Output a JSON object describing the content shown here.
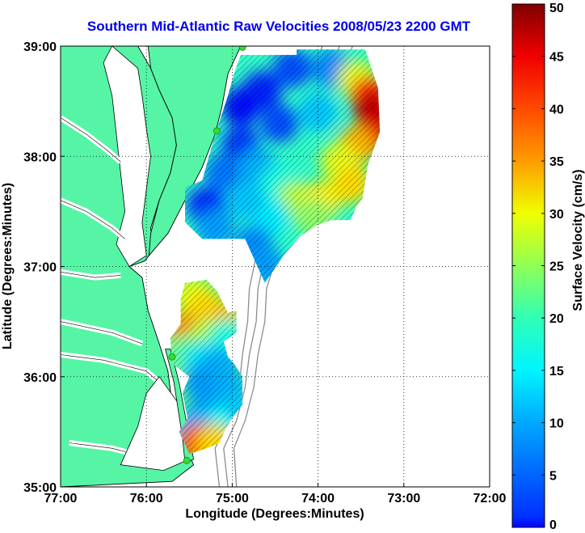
{
  "title": "Southern Mid-Atlantic Raw Velocities 2008/05/23 2200 GMT",
  "map": {
    "xlabel": "Longitude (Degrees:Minutes)",
    "ylabel": "Latitude (Degrees:Minutes)",
    "lon_range": [
      -77,
      -72
    ],
    "lat_range": [
      35,
      39
    ],
    "x_ticks": [
      {
        "value": -77,
        "label": "77:00"
      },
      {
        "value": -76,
        "label": "76:00"
      },
      {
        "value": -75,
        "label": "75:00"
      },
      {
        "value": -74,
        "label": "74:00"
      },
      {
        "value": -73,
        "label": "73:00"
      },
      {
        "value": -72,
        "label": "72:00"
      }
    ],
    "y_ticks": [
      {
        "value": 39,
        "label": "39:00"
      },
      {
        "value": 38,
        "label": "38:00"
      },
      {
        "value": 37,
        "label": "37:00"
      },
      {
        "value": 36,
        "label": "36:00"
      },
      {
        "value": 35,
        "label": "35:00"
      }
    ],
    "grid": "dotted",
    "colors": {
      "land": "#55f5a5",
      "water": "#ffffff",
      "coast": "#000000",
      "bathymetry": "#8c8c8c",
      "station": "#33dd33",
      "vectors": "#000000"
    }
  },
  "colorbar": {
    "label": "Surface Velocity (cm/s)",
    "range": [
      0,
      50
    ],
    "ticks": [
      0,
      5,
      10,
      15,
      20,
      25,
      30,
      35,
      40,
      45,
      50
    ],
    "colormap": "jet",
    "units": "cm/s"
  },
  "stations": [
    {
      "lon": -74.88,
      "lat": 38.99
    },
    {
      "lon": -75.18,
      "lat": 38.23
    },
    {
      "lon": -75.7,
      "lat": 36.18
    },
    {
      "lon": -75.53,
      "lat": 35.24
    }
  ],
  "chart_data": {
    "type": "heatmap",
    "title": "Southern Mid-Atlantic Raw Velocities 2008/05/23 2200 GMT",
    "xlabel": "Longitude (Degrees:Minutes)",
    "ylabel": "Latitude (Degrees:Minutes)",
    "xlim": [
      -77,
      -72
    ],
    "ylim": [
      35,
      39
    ],
    "zlabel": "Surface Velocity (cm/s)",
    "zlim": [
      0,
      50
    ],
    "regions": [
      {
        "polygon": [
          [
            -74.9,
            38.92
          ],
          [
            -74.25,
            38.92
          ],
          [
            -74.25,
            38.97
          ],
          [
            -73.45,
            38.97
          ],
          [
            -73.3,
            38.62
          ],
          [
            -73.28,
            38.22
          ],
          [
            -73.42,
            37.92
          ],
          [
            -73.48,
            37.62
          ],
          [
            -73.55,
            37.55
          ],
          [
            -73.62,
            37.42
          ],
          [
            -73.85,
            37.42
          ],
          [
            -74.0,
            37.38
          ],
          [
            -74.2,
            37.28
          ],
          [
            -74.4,
            37.1
          ],
          [
            -74.62,
            36.85
          ],
          [
            -74.85,
            37.25
          ],
          [
            -75.0,
            37.25
          ],
          [
            -75.35,
            37.25
          ],
          [
            -75.55,
            37.4
          ],
          [
            -75.55,
            37.72
          ],
          [
            -75.35,
            37.78
          ],
          [
            -75.2,
            38.2
          ],
          [
            -75.05,
            38.55
          ],
          [
            -74.98,
            38.75
          ]
        ],
        "cells": [
          {
            "lon": -74.65,
            "lat": 38.6,
            "v": 8
          },
          {
            "lon": -74.9,
            "lat": 38.45,
            "v": 7
          },
          {
            "lon": -74.3,
            "lat": 38.8,
            "v": 10
          },
          {
            "lon": -73.85,
            "lat": 38.8,
            "v": 13
          },
          {
            "lon": -73.55,
            "lat": 38.7,
            "v": 30
          },
          {
            "lon": -73.4,
            "lat": 38.55,
            "v": 42
          },
          {
            "lon": -73.35,
            "lat": 38.4,
            "v": 47
          },
          {
            "lon": -73.35,
            "lat": 38.2,
            "v": 45
          },
          {
            "lon": -73.55,
            "lat": 38.1,
            "v": 35
          },
          {
            "lon": -73.75,
            "lat": 37.95,
            "v": 30
          },
          {
            "lon": -73.6,
            "lat": 37.75,
            "v": 33
          },
          {
            "lon": -74.0,
            "lat": 38.4,
            "v": 16
          },
          {
            "lon": -74.45,
            "lat": 38.3,
            "v": 10
          },
          {
            "lon": -74.9,
            "lat": 38.1,
            "v": 9
          },
          {
            "lon": -75.1,
            "lat": 37.85,
            "v": 12
          },
          {
            "lon": -74.7,
            "lat": 37.9,
            "v": 15
          },
          {
            "lon": -74.45,
            "lat": 37.75,
            "v": 20
          },
          {
            "lon": -74.25,
            "lat": 37.6,
            "v": 28
          },
          {
            "lon": -73.95,
            "lat": 37.6,
            "v": 32
          },
          {
            "lon": -74.05,
            "lat": 37.45,
            "v": 26
          },
          {
            "lon": -74.55,
            "lat": 37.45,
            "v": 18
          },
          {
            "lon": -74.85,
            "lat": 37.6,
            "v": 16
          },
          {
            "lon": -75.3,
            "lat": 37.55,
            "v": 8
          },
          {
            "lon": -75.2,
            "lat": 37.35,
            "v": 14
          },
          {
            "lon": -74.75,
            "lat": 37.2,
            "v": 13
          },
          {
            "lon": -74.6,
            "lat": 37.0,
            "v": 14
          }
        ]
      },
      {
        "polygon": [
          [
            -75.55,
            36.85
          ],
          [
            -75.3,
            36.88
          ],
          [
            -75.18,
            36.78
          ],
          [
            -75.05,
            36.58
          ],
          [
            -74.95,
            36.6
          ],
          [
            -74.95,
            36.4
          ],
          [
            -75.1,
            36.32
          ],
          [
            -75.05,
            36.18
          ],
          [
            -74.98,
            36.12
          ],
          [
            -74.88,
            36.0
          ],
          [
            -74.88,
            35.75
          ],
          [
            -75.02,
            35.6
          ],
          [
            -75.08,
            35.52
          ],
          [
            -75.15,
            35.4
          ],
          [
            -75.3,
            35.35
          ],
          [
            -75.5,
            35.3
          ],
          [
            -75.62,
            35.5
          ],
          [
            -75.52,
            35.62
          ],
          [
            -75.58,
            35.85
          ],
          [
            -75.5,
            36.0
          ],
          [
            -75.7,
            36.12
          ],
          [
            -75.72,
            36.35
          ],
          [
            -75.6,
            36.48
          ],
          [
            -75.6,
            36.7
          ]
        ],
        "cells": [
          {
            "lon": -75.45,
            "lat": 36.72,
            "v": 30
          },
          {
            "lon": -75.3,
            "lat": 36.6,
            "v": 33
          },
          {
            "lon": -75.1,
            "lat": 36.5,
            "v": 34
          },
          {
            "lon": -75.55,
            "lat": 36.4,
            "v": 37
          },
          {
            "lon": -75.3,
            "lat": 36.35,
            "v": 28
          },
          {
            "lon": -75.05,
            "lat": 36.35,
            "v": 20
          },
          {
            "lon": -75.6,
            "lat": 36.2,
            "v": 24
          },
          {
            "lon": -75.35,
            "lat": 36.15,
            "v": 18
          },
          {
            "lon": -75.15,
            "lat": 36.1,
            "v": 15
          },
          {
            "lon": -75.35,
            "lat": 35.95,
            "v": 14
          },
          {
            "lon": -75.05,
            "lat": 35.9,
            "v": 15
          },
          {
            "lon": -75.25,
            "lat": 35.75,
            "v": 14
          },
          {
            "lon": -75.0,
            "lat": 35.7,
            "v": 16
          },
          {
            "lon": -75.2,
            "lat": 35.55,
            "v": 19
          },
          {
            "lon": -75.45,
            "lat": 35.55,
            "v": 15
          },
          {
            "lon": -75.4,
            "lat": 35.4,
            "v": 40
          },
          {
            "lon": -75.2,
            "lat": 35.4,
            "v": 33
          }
        ]
      }
    ]
  }
}
